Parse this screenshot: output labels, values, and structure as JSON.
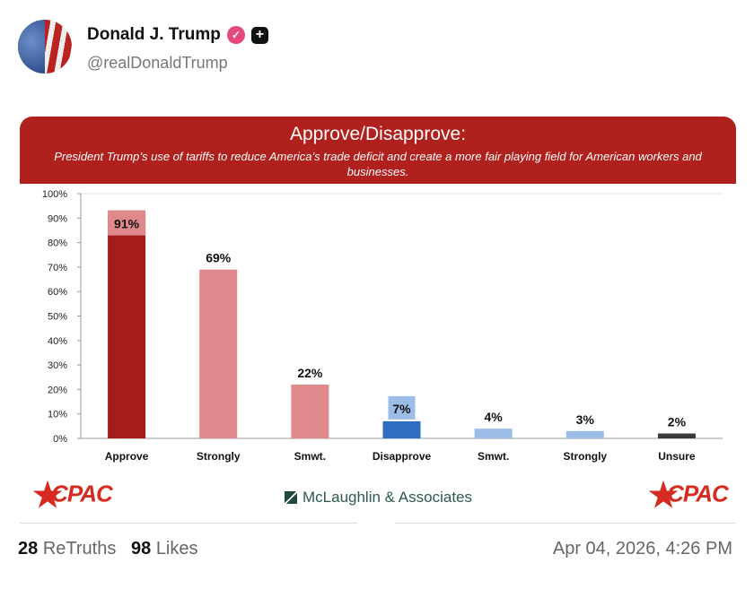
{
  "post": {
    "author_name": "Donald J. Trump",
    "handle": "@realDonaldTrump",
    "verified_icon": "verified-badge-icon",
    "plus_icon": "plus-icon",
    "retruths_count": "28",
    "retruths_label": "ReTruths",
    "likes_count": "98",
    "likes_label": "Likes",
    "timestamp": "Apr 04, 2026, 4:26 PM"
  },
  "logos": {
    "left": "CPAC",
    "center": "McLaughlin & Associates",
    "right": "CPAC"
  },
  "chart_data": {
    "type": "bar",
    "title": "Approve/Disapprove:",
    "subtitle": "President Trump’s use of tariffs to reduce America’s trade deficit and create a more fair playing field for American workers and businesses.",
    "categories": [
      "Approve",
      "Strongly",
      "Smwt.",
      "Disapprove",
      "Smwt.",
      "Strongly",
      "Unsure"
    ],
    "values": [
      91,
      69,
      22,
      7,
      4,
      3,
      2
    ],
    "data_labels": [
      "91%",
      "69%",
      "22%",
      "7%",
      "4%",
      "3%",
      "2%"
    ],
    "colors": [
      "#a51d1a",
      "#e0898d",
      "#e0898d",
      "#2f6dc1",
      "#9dbde9",
      "#9dbde9",
      "#3a3a3a"
    ],
    "ylim": [
      0,
      100
    ],
    "yticks": [
      "0%",
      "10%",
      "20%",
      "30%",
      "40%",
      "50%",
      "60%",
      "70%",
      "80%",
      "90%",
      "100%"
    ],
    "grid": false,
    "header_color": "#b0201c"
  }
}
